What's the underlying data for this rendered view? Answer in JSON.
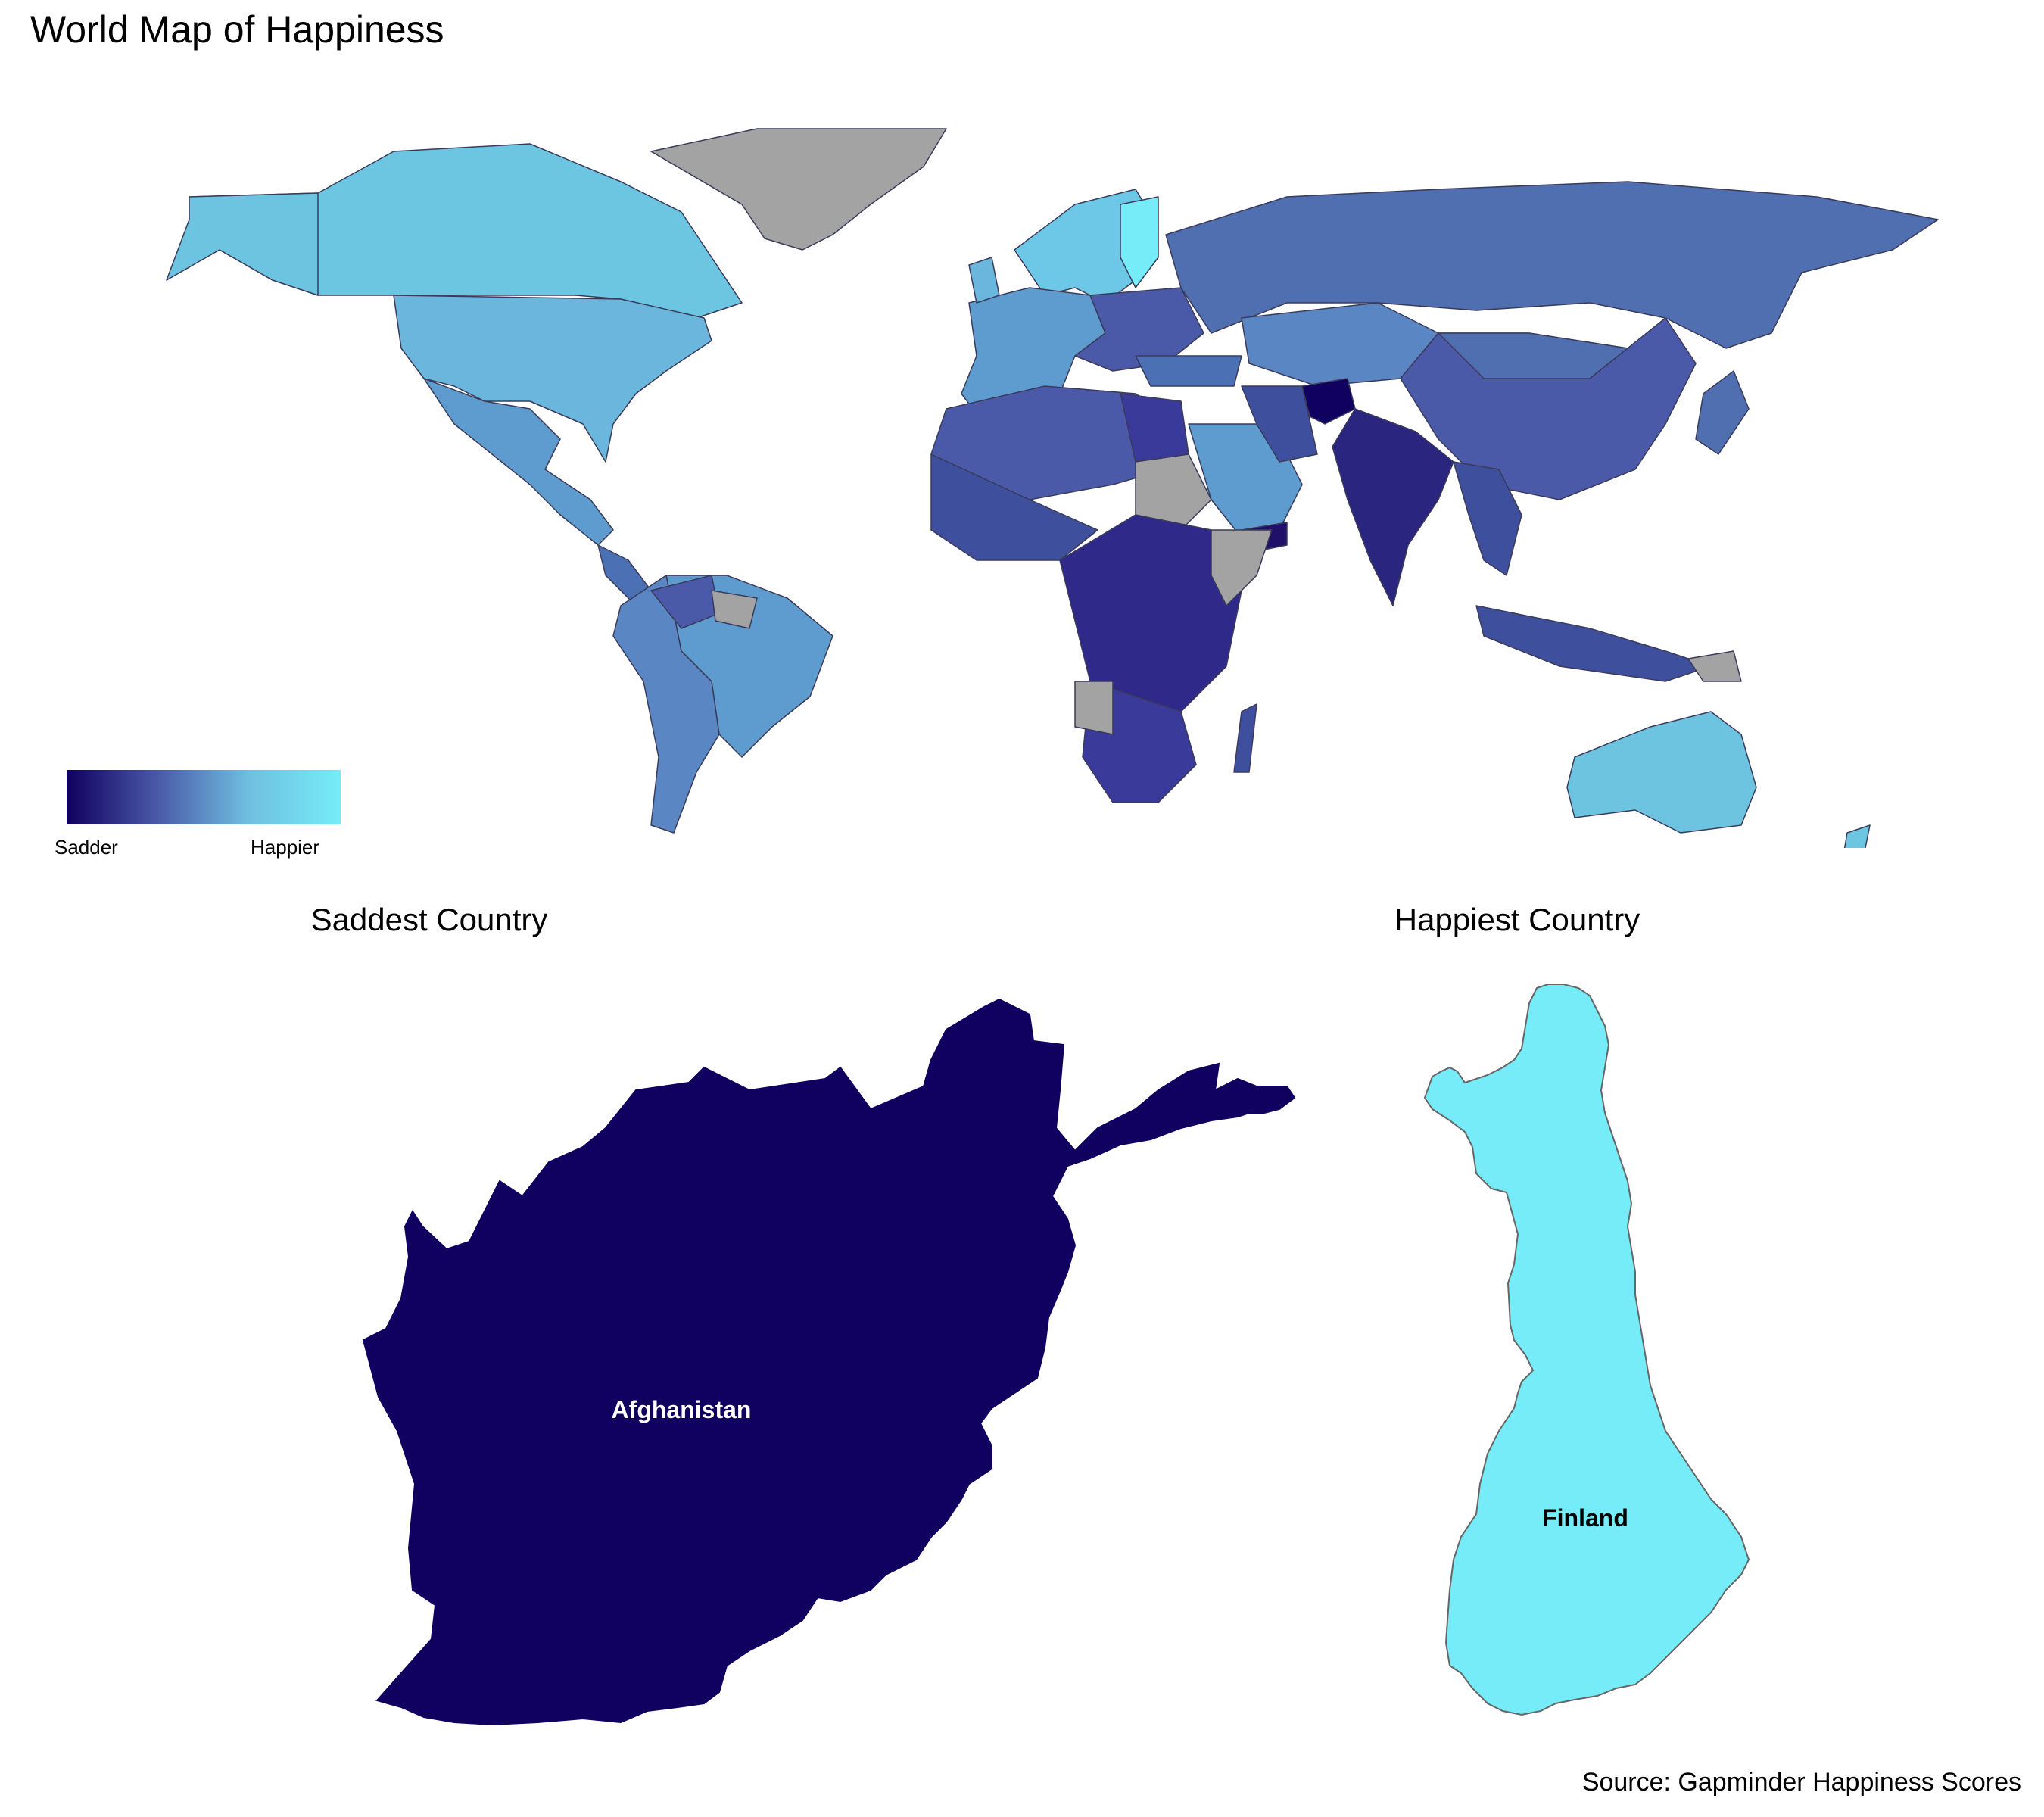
{
  "title": "World Map of Happiness",
  "legend": {
    "low_label": "Sadder",
    "high_label": "Happier",
    "gradient": [
      "#10005f",
      "#4a5aa8",
      "#6fc0e0",
      "#76ecf8"
    ]
  },
  "missing_color": "#a3a3a3",
  "saddest": {
    "heading": "Saddest Country",
    "country": "Afghanistan",
    "color": "#10005f"
  },
  "happiest": {
    "heading": "Happiest Country",
    "country": "Finland",
    "color": "#76ecf8"
  },
  "source": "Source: Gapminder Happiness Scores"
}
